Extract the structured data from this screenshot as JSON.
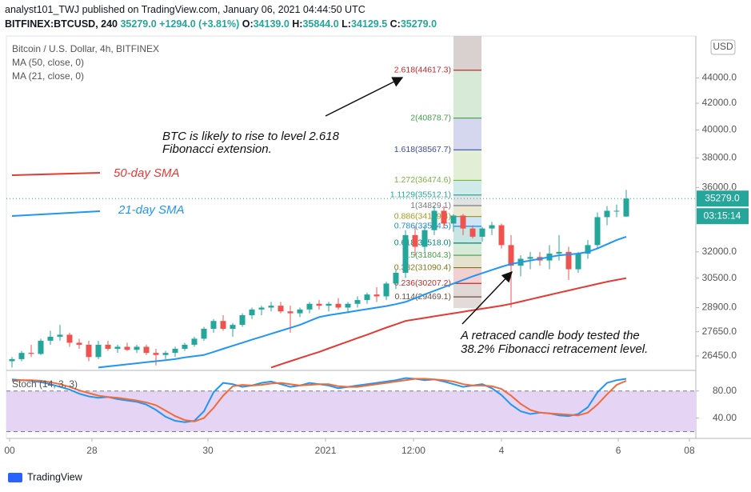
{
  "header": {
    "publisher": "analyst101_TWJ published on TradingView.com, January 06, 2021 04:44:50 UTC",
    "symbol": "BITFINEX:BTCUSD, 240",
    "last": "35279.0",
    "change": "+1294.0 (+3.81%)",
    "ohlc": [
      {
        "key": "O:",
        "value": "34139.0"
      },
      {
        "key": "H:",
        "value": "35844.0"
      },
      {
        "key": "L:",
        "value": "34129.5"
      },
      {
        "key": "C:",
        "value": "35279.0"
      }
    ]
  },
  "footer": {
    "brand": "TradingView"
  },
  "chart_data": [
    {
      "type": "candlestick",
      "title": "Bitcoin / U.S. Dollar, 4h, BITFINEX",
      "currency": "USD",
      "up_color": "#26a69a",
      "down_color": "#ef5350",
      "log_scale": true,
      "open": [
        26200,
        26300,
        26600,
        26550,
        27200,
        27400,
        27500,
        27100,
        27000,
        26400,
        27000,
        26800,
        26900,
        26750,
        26900,
        26600,
        26500,
        26600,
        26800,
        27000,
        27300,
        27800,
        28200,
        27800,
        28000,
        28500,
        28800,
        28900,
        29000,
        28700,
        28600,
        28800,
        29100,
        29000,
        29100,
        28900,
        29100,
        29300,
        29600,
        29500,
        30200,
        30800,
        33000,
        32300,
        33300,
        34500,
        33700,
        34200,
        33400,
        32900,
        33400,
        33600,
        32400,
        31200,
        31600,
        31700,
        31500,
        31900,
        32000,
        31000,
        31900,
        32400,
        34100,
        34500,
        34139.0
      ],
      "high": [
        26400,
        26700,
        27000,
        27300,
        27700,
        28000,
        27600,
        27300,
        27200,
        27200,
        27200,
        27000,
        27100,
        27000,
        27000,
        26800,
        26700,
        26900,
        27100,
        27400,
        27900,
        28300,
        28500,
        28100,
        28600,
        28900,
        29000,
        29200,
        29200,
        29000,
        28900,
        29200,
        29300,
        29200,
        29400,
        29200,
        29500,
        29700,
        30000,
        30300,
        31000,
        33300,
        33500,
        33600,
        34800,
        34800,
        34300,
        34300,
        33600,
        33500,
        33800,
        33700,
        33000,
        31800,
        32000,
        32000,
        32400,
        33000,
        32300,
        32000,
        32700,
        34400,
        34800,
        34900,
        35844.0
      ],
      "low": [
        25900,
        26200,
        26400,
        26500,
        27000,
        27200,
        26900,
        26800,
        26200,
        26300,
        26700,
        26600,
        26700,
        26600,
        26500,
        26000,
        26300,
        26400,
        26700,
        26900,
        27200,
        27600,
        27700,
        27400,
        27900,
        28300,
        28500,
        28700,
        28600,
        27600,
        28400,
        28600,
        28800,
        28700,
        28800,
        28600,
        28900,
        29100,
        29200,
        29300,
        29900,
        30500,
        31800,
        32000,
        33000,
        33400,
        33200,
        33000,
        32800,
        32600,
        33000,
        32200,
        28900,
        30600,
        31000,
        31200,
        31000,
        31500,
        30400,
        30800,
        31600,
        32200,
        33600,
        34100,
        34129.5
      ],
      "close": [
        26300,
        26600,
        26550,
        27200,
        27400,
        27500,
        27100,
        27000,
        26400,
        27000,
        26800,
        26900,
        26750,
        26900,
        26600,
        26500,
        26600,
        26800,
        27000,
        27300,
        27800,
        28200,
        27800,
        28000,
        28500,
        28800,
        28900,
        29000,
        28700,
        28600,
        28800,
        29100,
        29000,
        29100,
        28900,
        29100,
        29300,
        29600,
        29500,
        30200,
        30800,
        33000,
        32300,
        33300,
        34500,
        33700,
        34200,
        33400,
        32900,
        33400,
        33600,
        32400,
        31200,
        31600,
        31700,
        31500,
        31900,
        32000,
        31000,
        31900,
        32400,
        34100,
        34500,
        34500,
        35279.0
      ],
      "series": [
        {
          "name": "MA (50, close, 0)",
          "color": "#e53935",
          "values": [
            null,
            null,
            null,
            null,
            null,
            null,
            null,
            null,
            null,
            null,
            null,
            null,
            null,
            null,
            null,
            null,
            null,
            null,
            null,
            null,
            null,
            null,
            null,
            null,
            null,
            null,
            null,
            25900,
            26050,
            26200,
            26350,
            26500,
            26650,
            26820,
            26990,
            27160,
            27330,
            27500,
            27680,
            27860,
            28030,
            28200,
            28280,
            28360,
            28440,
            28520,
            28600,
            28680,
            28760,
            28840,
            28920,
            29000,
            29100,
            29220,
            29340,
            29460,
            29580,
            29700,
            29820,
            29940,
            30060,
            30180,
            30300,
            30400,
            30500
          ]
        },
        {
          "name": "MA (21, close, 0)",
          "color": "#2196f3",
          "values": [
            null,
            null,
            null,
            null,
            null,
            null,
            null,
            null,
            null,
            25900,
            25950,
            26000,
            26050,
            26100,
            26150,
            26200,
            26250,
            26300,
            26380,
            26440,
            26500,
            26650,
            26800,
            26950,
            27100,
            27250,
            27400,
            27550,
            27700,
            27850,
            28000,
            28200,
            28400,
            28500,
            28580,
            28660,
            28740,
            28820,
            28900,
            28980,
            29080,
            29200,
            29400,
            29600,
            29800,
            30000,
            30200,
            30400,
            30600,
            30780,
            30960,
            31140,
            31300,
            31400,
            31500,
            31600,
            31700,
            31800,
            31850,
            31900,
            32000,
            32200,
            32450,
            32700,
            32900
          ]
        }
      ],
      "fibonacci": {
        "values": [
          44617.3,
          40878.7,
          38567.7,
          36474.6,
          35512.1,
          34829.1,
          34139.4,
          33534.5,
          32518.0,
          31804.3,
          31090.4,
          30207.2,
          29469.1
        ],
        "value_labels": [
          "2.618(44617.3)",
          "2(40878.7)",
          "1.618(38567.7)",
          "1.272(36474.6)",
          "1.1129(35512.1)",
          "1(34829.1)",
          "0.886(34139.4)",
          "0.786(33534.5)",
          "0.618(32518.0)",
          "0.5(31804.3)",
          "0.382(31090.4)",
          "0.236(30207.2)",
          "0.114(29469.1)"
        ],
        "colors": [
          "#c62828",
          "#43a047",
          "#3949ab",
          "#7cb342",
          "#26a69a",
          "#787b86",
          "#9e9d24",
          "#1e88e5",
          "#00897b",
          "#43a047",
          "#827717",
          "#c62828",
          "#6d4c41"
        ]
      },
      "last_price": {
        "value": 35279.0,
        "label": "35279.0",
        "countdown": "03:15:14"
      },
      "annotations": [
        "50-day SMA",
        "21-day SMA",
        "BTC is likely to rise to level 2.618",
        "Fibonacci extension.",
        "A retraced  candle body tested the",
        "38.2% Fibonacci retracement level."
      ],
      "xlim": [
        -0.583,
        71.25
      ],
      "xticks": [
        {
          "value": -0.25,
          "label": "00"
        },
        {
          "value": 8.33,
          "label": "28"
        },
        {
          "value": 20.42,
          "label": "30"
        },
        {
          "value": 32.67,
          "label": "2021"
        },
        {
          "value": 41.83,
          "label": "12:00"
        },
        {
          "value": 51,
          "label": "4"
        },
        {
          "value": 63.17,
          "label": "6"
        },
        {
          "value": 70.58,
          "label": "08"
        }
      ],
      "ylim": [
        25800,
        47500
      ],
      "yticks": [
        {
          "value": 26450,
          "label": "26450.0"
        },
        {
          "value": 27650,
          "label": "27650.0"
        },
        {
          "value": 28900,
          "label": "28900.0"
        },
        {
          "value": 30500,
          "label": "30500.0"
        },
        {
          "value": 32000,
          "label": "32000.0"
        },
        {
          "value": 36000,
          "label": "36000.0"
        },
        {
          "value": 38000,
          "label": "38000.0"
        },
        {
          "value": 40000,
          "label": "40000.0"
        },
        {
          "value": 42000,
          "label": "42000.0"
        },
        {
          "value": 44000,
          "label": "44000.0"
        }
      ]
    },
    {
      "type": "line",
      "title": "Stoch (14, 3, 3)",
      "band": [
        20,
        80
      ],
      "band_color": "#e6d4f5",
      "series": [
        {
          "name": "%K",
          "color": "#2196f3",
          "values": [
            97,
            96,
            95,
            93,
            90,
            86,
            82,
            76,
            72,
            70,
            71,
            68,
            66,
            64,
            60,
            52,
            42,
            36,
            34,
            36,
            50,
            78,
            92,
            90,
            86,
            88,
            92,
            94,
            90,
            86,
            88,
            92,
            90,
            88,
            84,
            86,
            88,
            90,
            92,
            94,
            96,
            99,
            98,
            96,
            97,
            94,
            90,
            86,
            88,
            90,
            84,
            74,
            60,
            50,
            46,
            48,
            47,
            44,
            43,
            46,
            56,
            78,
            92,
            96,
            98
          ]
        },
        {
          "name": "%D",
          "color": "#ef6c3a",
          "values": [
            95,
            96,
            96,
            95,
            93,
            90,
            86,
            81,
            77,
            73,
            71,
            70,
            68,
            66,
            63,
            59,
            51,
            43,
            37,
            35,
            40,
            55,
            73,
            87,
            89,
            88,
            89,
            91,
            92,
            90,
            88,
            89,
            90,
            90,
            87,
            86,
            86,
            88,
            90,
            92,
            94,
            96,
            98,
            98,
            97,
            96,
            94,
            90,
            88,
            88,
            87,
            83,
            73,
            61,
            52,
            48,
            47,
            46,
            45,
            44,
            48,
            60,
            75,
            89,
            95
          ]
        }
      ],
      "ylim": [
        10,
        108
      ],
      "yticks": [
        {
          "value": 80,
          "label": "80.00"
        },
        {
          "value": 40,
          "label": "40.00"
        }
      ]
    }
  ]
}
